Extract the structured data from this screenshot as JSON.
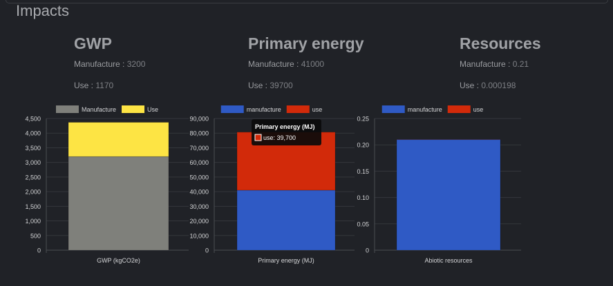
{
  "page": {
    "title": "Impacts"
  },
  "metrics": [
    {
      "title": "GWP",
      "manufacture_label": "Manufacture",
      "manufacture_value": "3200",
      "use_label": "Use",
      "use_value": "1170"
    },
    {
      "title": "Primary energy",
      "manufacture_label": "Manufacture",
      "manufacture_value": "41000",
      "use_label": "Use",
      "use_value": "39700"
    },
    {
      "title": "Resources",
      "manufacture_label": "Manufacture",
      "manufacture_value": "0.21",
      "use_label": "Use",
      "use_value": "0.000198"
    }
  ],
  "chart_data": [
    {
      "type": "bar",
      "stacked": true,
      "categories": [
        "GWP (kgCO2e)"
      ],
      "series": [
        {
          "name": "Manufacture",
          "values": [
            3200
          ],
          "color": "#7f807b"
        },
        {
          "name": "Use",
          "values": [
            1170
          ],
          "color": "#fde444"
        }
      ],
      "ylim": [
        0,
        4500
      ],
      "yticks": [
        "0",
        "500",
        "1,000",
        "1,500",
        "2,000",
        "2,500",
        "3,000",
        "3,500",
        "4,000",
        "4,500"
      ],
      "legend": "top"
    },
    {
      "type": "bar",
      "stacked": true,
      "categories": [
        "Primary energy (MJ)"
      ],
      "series": [
        {
          "name": "manufacture",
          "values": [
            41000
          ],
          "color": "#2f5ac5"
        },
        {
          "name": "use",
          "values": [
            39700
          ],
          "color": "#d22a0a"
        }
      ],
      "ylim": [
        0,
        90000
      ],
      "yticks": [
        "0",
        "10,000",
        "20,000",
        "30,000",
        "40,000",
        "50,000",
        "60,000",
        "70,000",
        "80,000",
        "90,000"
      ],
      "legend": "top",
      "tooltip": {
        "title": "Primary energy (MJ)",
        "text": "use: 39,700"
      }
    },
    {
      "type": "bar",
      "stacked": true,
      "categories": [
        "Abiotic resources"
      ],
      "series": [
        {
          "name": "manufacture",
          "values": [
            0.21
          ],
          "color": "#2f5ac5"
        },
        {
          "name": "use",
          "values": [
            0.000198
          ],
          "color": "#d22a0a"
        }
      ],
      "ylim": [
        0,
        0.25
      ],
      "yticks": [
        "0",
        "0.05",
        "0.10",
        "0.15",
        "0.20",
        "0.25"
      ],
      "legend": "top"
    }
  ]
}
